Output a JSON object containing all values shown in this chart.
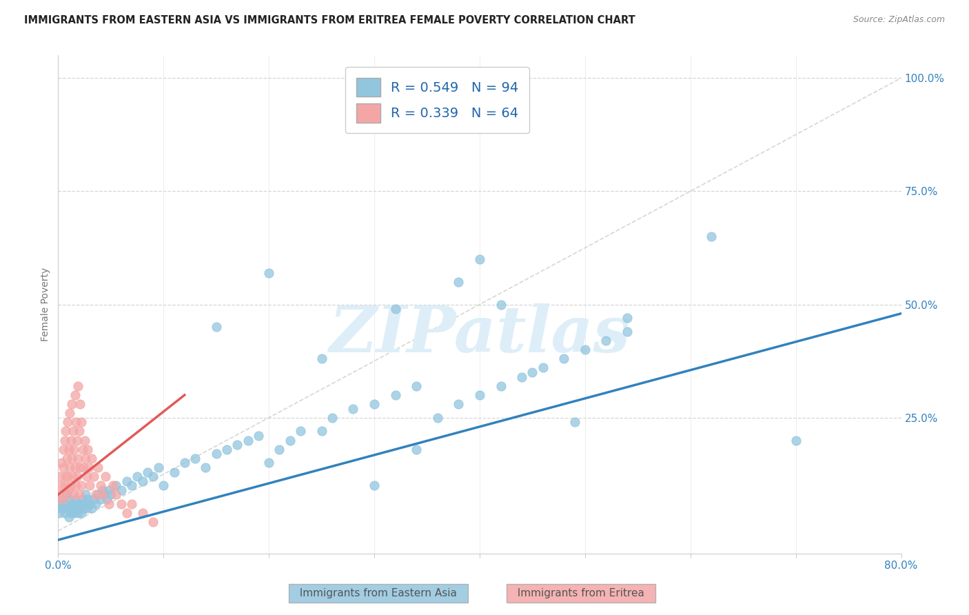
{
  "title": "IMMIGRANTS FROM EASTERN ASIA VS IMMIGRANTS FROM ERITREA FEMALE POVERTY CORRELATION CHART",
  "source": "Source: ZipAtlas.com",
  "ylabel": "Female Poverty",
  "R_blue": 0.549,
  "N_blue": 94,
  "R_pink": 0.339,
  "N_pink": 64,
  "blue_color": "#92c5de",
  "blue_color_line": "#3182bd",
  "pink_color": "#f4a6a6",
  "pink_color_line": "#e05a5a",
  "legend_text_color": "#2166ac",
  "watermark_color": "#ddeef8",
  "background_color": "#ffffff",
  "grid_color": "#cccccc",
  "title_color": "#222222",
  "axis_label_color": "#3182bd",
  "xlim": [
    0.0,
    0.8
  ],
  "ylim": [
    -0.05,
    1.05
  ],
  "blue_x": [
    0.001,
    0.002,
    0.003,
    0.004,
    0.005,
    0.006,
    0.007,
    0.008,
    0.009,
    0.01,
    0.01,
    0.011,
    0.012,
    0.013,
    0.014,
    0.015,
    0.016,
    0.017,
    0.018,
    0.019,
    0.02,
    0.021,
    0.022,
    0.023,
    0.024,
    0.025,
    0.026,
    0.027,
    0.028,
    0.029,
    0.03,
    0.032,
    0.034,
    0.036,
    0.038,
    0.04,
    0.042,
    0.044,
    0.046,
    0.048,
    0.05,
    0.055,
    0.06,
    0.065,
    0.07,
    0.075,
    0.08,
    0.085,
    0.09,
    0.095,
    0.1,
    0.11,
    0.12,
    0.13,
    0.14,
    0.15,
    0.16,
    0.17,
    0.18,
    0.19,
    0.2,
    0.21,
    0.22,
    0.23,
    0.25,
    0.26,
    0.28,
    0.3,
    0.32,
    0.34,
    0.36,
    0.38,
    0.4,
    0.42,
    0.44,
    0.46,
    0.48,
    0.5,
    0.52,
    0.54,
    0.32,
    0.34,
    0.38,
    0.4,
    0.42,
    0.45,
    0.49,
    0.54,
    0.62,
    0.7,
    0.15,
    0.2,
    0.25,
    0.3
  ],
  "blue_y": [
    0.04,
    0.06,
    0.05,
    0.07,
    0.05,
    0.04,
    0.06,
    0.08,
    0.05,
    0.07,
    0.03,
    0.05,
    0.04,
    0.06,
    0.05,
    0.04,
    0.07,
    0.05,
    0.06,
    0.04,
    0.05,
    0.06,
    0.04,
    0.07,
    0.05,
    0.06,
    0.08,
    0.05,
    0.07,
    0.06,
    0.06,
    0.05,
    0.07,
    0.06,
    0.08,
    0.07,
    0.09,
    0.08,
    0.07,
    0.09,
    0.08,
    0.1,
    0.09,
    0.11,
    0.1,
    0.12,
    0.11,
    0.13,
    0.12,
    0.14,
    0.1,
    0.13,
    0.15,
    0.16,
    0.14,
    0.17,
    0.18,
    0.19,
    0.2,
    0.21,
    0.15,
    0.18,
    0.2,
    0.22,
    0.22,
    0.25,
    0.27,
    0.28,
    0.3,
    0.32,
    0.25,
    0.28,
    0.3,
    0.32,
    0.34,
    0.36,
    0.38,
    0.4,
    0.42,
    0.44,
    0.49,
    0.18,
    0.55,
    0.6,
    0.5,
    0.35,
    0.24,
    0.47,
    0.65,
    0.2,
    0.45,
    0.57,
    0.38,
    0.1
  ],
  "pink_x": [
    0.001,
    0.002,
    0.003,
    0.003,
    0.004,
    0.005,
    0.005,
    0.006,
    0.006,
    0.007,
    0.007,
    0.008,
    0.008,
    0.009,
    0.009,
    0.01,
    0.01,
    0.011,
    0.011,
    0.012,
    0.012,
    0.013,
    0.013,
    0.014,
    0.014,
    0.015,
    0.015,
    0.016,
    0.016,
    0.017,
    0.017,
    0.018,
    0.018,
    0.019,
    0.019,
    0.02,
    0.02,
    0.021,
    0.021,
    0.022,
    0.022,
    0.023,
    0.024,
    0.025,
    0.026,
    0.027,
    0.028,
    0.029,
    0.03,
    0.032,
    0.034,
    0.036,
    0.038,
    0.04,
    0.042,
    0.045,
    0.048,
    0.052,
    0.055,
    0.06,
    0.065,
    0.07,
    0.08,
    0.09
  ],
  "pink_y": [
    0.08,
    0.12,
    0.1,
    0.15,
    0.07,
    0.14,
    0.18,
    0.1,
    0.2,
    0.12,
    0.22,
    0.08,
    0.16,
    0.12,
    0.24,
    0.09,
    0.18,
    0.14,
    0.26,
    0.1,
    0.2,
    0.16,
    0.28,
    0.12,
    0.22,
    0.08,
    0.18,
    0.14,
    0.3,
    0.1,
    0.24,
    0.12,
    0.2,
    0.16,
    0.32,
    0.08,
    0.22,
    0.14,
    0.28,
    0.1,
    0.24,
    0.18,
    0.14,
    0.2,
    0.16,
    0.12,
    0.18,
    0.14,
    0.1,
    0.16,
    0.12,
    0.08,
    0.14,
    0.1,
    0.08,
    0.12,
    0.06,
    0.1,
    0.08,
    0.06,
    0.04,
    0.06,
    0.04,
    0.02
  ],
  "blue_trend_x": [
    0.0,
    0.8
  ],
  "blue_trend_y": [
    -0.02,
    0.48
  ],
  "pink_trend_x": [
    0.0,
    0.12
  ],
  "pink_trend_y": [
    0.08,
    0.3
  ]
}
